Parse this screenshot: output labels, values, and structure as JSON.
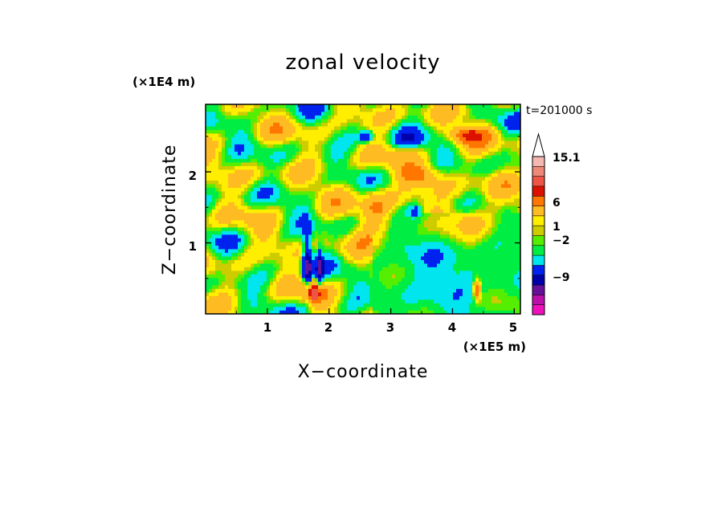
{
  "chart_data": {
    "type": "heatmap",
    "title": "zonal velocity",
    "xlabel": "X−coordinate",
    "ylabel": "Z−coordinate",
    "x_unit": "(×1E5 m)",
    "y_unit": "(×1E4 m)",
    "time_label": "t=201000 s",
    "xlim": [
      0,
      5.1
    ],
    "ylim": [
      0,
      2.95
    ],
    "x_ticks": [
      "1",
      "2",
      "3",
      "4",
      "5"
    ],
    "y_ticks": [
      "1",
      "2"
    ],
    "colorbar": {
      "labels": [
        "15.1",
        "6",
        "1",
        "−2",
        "−9"
      ],
      "label_values": [
        15.1,
        6,
        1,
        -2,
        -9
      ],
      "bands": [
        {
          "lo": -16,
          "hi": -12,
          "color": "#ee11bb"
        },
        {
          "lo": -12,
          "hi": -9,
          "color": "#bb11aa"
        },
        {
          "lo": -9,
          "hi": -6,
          "color": "#661199"
        },
        {
          "lo": -6,
          "hi": -4,
          "color": "#0000aa"
        },
        {
          "lo": -4,
          "hi": -2,
          "color": "#0022ee"
        },
        {
          "lo": -2,
          "hi": -1,
          "color": "#00e5ee"
        },
        {
          "lo": -1,
          "hi": 0,
          "color": "#00ee44"
        },
        {
          "lo": 0,
          "hi": 0.5,
          "color": "#55ee00"
        },
        {
          "lo": 0.5,
          "hi": 1,
          "color": "#cccc00"
        },
        {
          "lo": 1,
          "hi": 2,
          "color": "#ffee00"
        },
        {
          "lo": 2,
          "hi": 4,
          "color": "#ffbb22"
        },
        {
          "lo": 4,
          "hi": 6,
          "color": "#ff7700"
        },
        {
          "lo": 6,
          "hi": 8,
          "color": "#dd1100"
        },
        {
          "lo": 8,
          "hi": 11,
          "color": "#ee5544"
        },
        {
          "lo": 11,
          "hi": 13,
          "color": "#ee8877"
        },
        {
          "lo": 13,
          "hi": 15.1,
          "color": "#f4b8b0"
        }
      ],
      "max_arrow_color": "#ffffff"
    },
    "features": [
      {
        "x": 4.25,
        "z": 2.52,
        "value": 5,
        "sx": 0.3,
        "sz": 0.12
      },
      {
        "x": 3.5,
        "z": 1.95,
        "value": 4,
        "sx": 0.35,
        "sz": 0.15
      },
      {
        "x": 2.75,
        "z": 1.45,
        "value": 3.5,
        "sx": 0.25,
        "sz": 0.4
      },
      {
        "x": 4.3,
        "z": 1.35,
        "value": 3,
        "sx": 0.4,
        "sz": 0.3
      },
      {
        "x": 1.65,
        "z": 0.7,
        "value": -7,
        "sx": 0.08,
        "sz": 0.45
      },
      {
        "x": 1.85,
        "z": 0.6,
        "value": -5,
        "sx": 0.05,
        "sz": 0.35
      },
      {
        "x": 2.6,
        "z": 2.5,
        "value": -5,
        "sx": 0.12,
        "sz": 0.08
      },
      {
        "x": 3.3,
        "z": 2.45,
        "value": -3,
        "sx": 0.25,
        "sz": 0.12
      },
      {
        "x": 3.4,
        "z": 1.45,
        "value": -3,
        "sx": 0.1,
        "sz": 0.08
      },
      {
        "x": 1.75,
        "z": 0.3,
        "value": 8,
        "sx": 0.15,
        "sz": 0.15
      },
      {
        "x": 4.4,
        "z": 0.35,
        "value": 6,
        "sx": 0.06,
        "sz": 0.15
      },
      {
        "x": 3.9,
        "z": 0.55,
        "value": -1.5,
        "sx": 0.8,
        "sz": 0.5
      }
    ]
  }
}
